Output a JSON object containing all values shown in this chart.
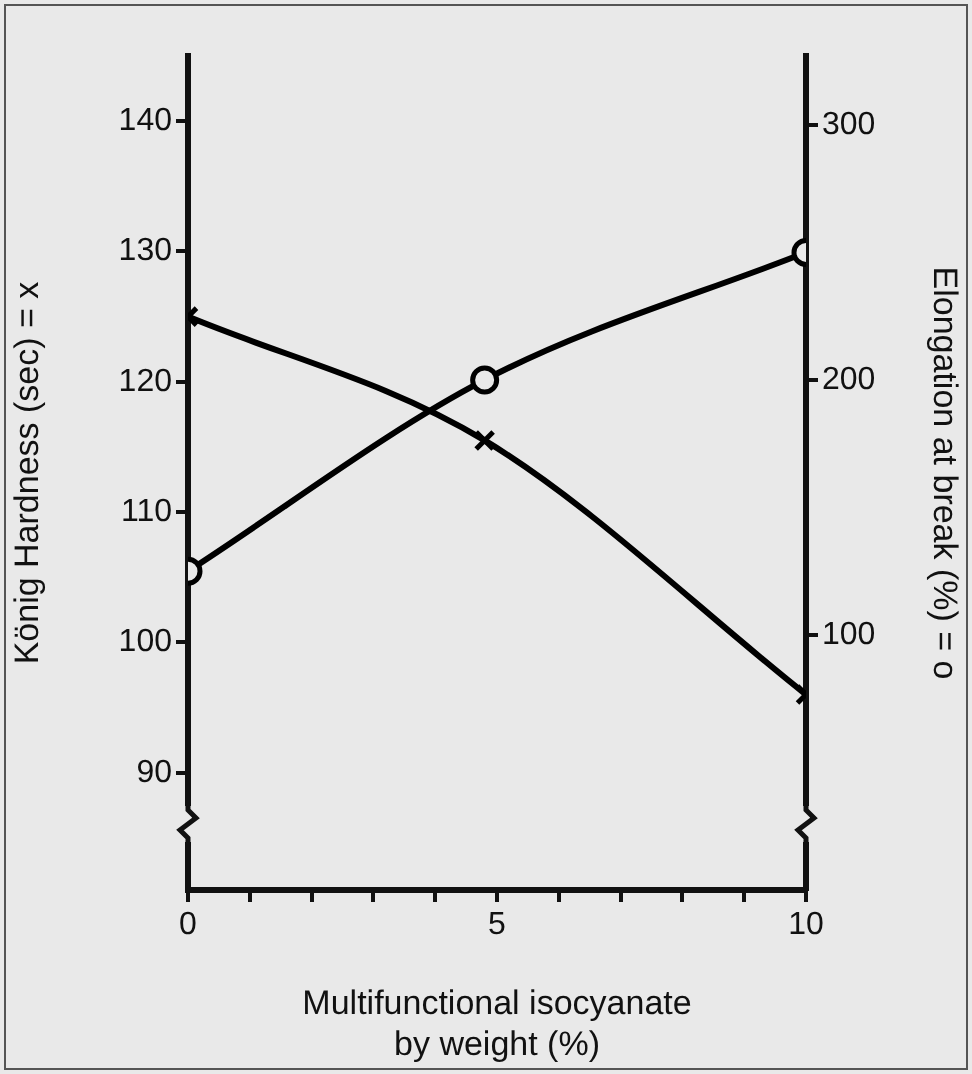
{
  "chart_data": {
    "type": "line",
    "xlabel": "Multifunctional isocyanate\nby weight (%)",
    "ylabel": "König Hardness (sec) = x",
    "y2label": "Elongation at break (%) = o",
    "x": [
      0,
      4.8,
      10
    ],
    "series": [
      {
        "color": "#000000",
        "marker": "cross",
        "values": [
          125,
          115.5,
          96
        ]
      },
      {
        "color": "#000000",
        "marker": "circle",
        "axis": "y2",
        "values": [
          125,
          200,
          250
        ]
      }
    ],
    "xlim": [
      0,
      10
    ],
    "xticks": [
      0,
      {
        "value": 1,
        "label": null
      },
      {
        "value": 2,
        "label": null
      },
      {
        "value": 3,
        "label": null
      },
      {
        "value": 4,
        "label": null
      },
      5,
      {
        "value": 6,
        "label": null
      },
      {
        "value": 7,
        "label": null
      },
      {
        "value": 8,
        "label": null
      },
      {
        "value": 9,
        "label": null
      },
      10
    ],
    "ylim": [
      81,
      145
    ],
    "yticks": [
      90,
      100,
      110,
      120,
      130,
      140
    ],
    "y2lim": [
      0,
      327
    ],
    "y2ticks": [
      100,
      200,
      300
    ],
    "grid": false,
    "legend": false,
    "line_style": "solid"
  }
}
